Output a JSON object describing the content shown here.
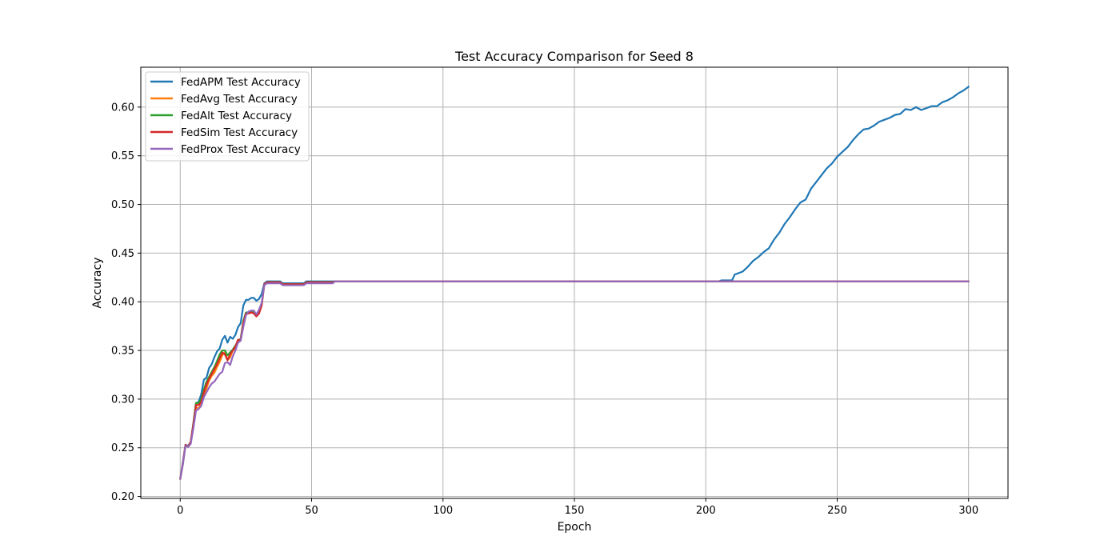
{
  "chart_data": {
    "type": "line",
    "title": "Test Accuracy Comparison for Seed 8",
    "xlabel": "Epoch",
    "ylabel": "Accuracy",
    "xlim": [
      -15,
      315
    ],
    "ylim": [
      0.198,
      0.641
    ],
    "xticks": [
      0,
      50,
      100,
      150,
      200,
      250,
      300
    ],
    "xtick_labels": [
      "0",
      "50",
      "100",
      "150",
      "200",
      "250",
      "300"
    ],
    "yticks": [
      0.2,
      0.25,
      0.3,
      0.35,
      0.4,
      0.45,
      0.5,
      0.55,
      0.6
    ],
    "ytick_labels": [
      "0.20",
      "0.25",
      "0.30",
      "0.35",
      "0.40",
      "0.45",
      "0.50",
      "0.55",
      "0.60"
    ],
    "grid": true,
    "legend_position": "upper-left",
    "series": [
      {
        "name": "FedAPM Test Accuracy",
        "color": "#1f77b4",
        "points": [
          [
            0,
            0.218
          ],
          [
            1,
            0.235
          ],
          [
            2,
            0.253
          ],
          [
            3,
            0.252
          ],
          [
            4,
            0.256
          ],
          [
            5,
            0.275
          ],
          [
            6,
            0.296
          ],
          [
            7,
            0.297
          ],
          [
            8,
            0.305
          ],
          [
            9,
            0.32
          ],
          [
            10,
            0.322
          ],
          [
            11,
            0.332
          ],
          [
            12,
            0.336
          ],
          [
            13,
            0.343
          ],
          [
            14,
            0.349
          ],
          [
            15,
            0.352
          ],
          [
            16,
            0.361
          ],
          [
            17,
            0.365
          ],
          [
            18,
            0.358
          ],
          [
            19,
            0.364
          ],
          [
            20,
            0.362
          ],
          [
            21,
            0.366
          ],
          [
            22,
            0.374
          ],
          [
            23,
            0.378
          ],
          [
            24,
            0.396
          ],
          [
            25,
            0.402
          ],
          [
            26,
            0.402
          ],
          [
            27,
            0.404
          ],
          [
            28,
            0.404
          ],
          [
            29,
            0.401
          ],
          [
            30,
            0.403
          ],
          [
            31,
            0.408
          ],
          [
            32,
            0.419
          ],
          [
            33,
            0.421
          ],
          [
            35,
            0.421
          ],
          [
            38,
            0.421
          ],
          [
            39,
            0.419
          ],
          [
            47,
            0.419
          ],
          [
            48,
            0.421
          ],
          [
            205,
            0.421
          ],
          [
            206,
            0.422
          ],
          [
            210,
            0.422
          ],
          [
            211,
            0.428
          ],
          [
            214,
            0.431
          ],
          [
            216,
            0.436
          ],
          [
            218,
            0.442
          ],
          [
            220,
            0.446
          ],
          [
            222,
            0.451
          ],
          [
            224,
            0.455
          ],
          [
            226,
            0.464
          ],
          [
            228,
            0.471
          ],
          [
            230,
            0.48
          ],
          [
            232,
            0.487
          ],
          [
            234,
            0.495
          ],
          [
            236,
            0.502
          ],
          [
            238,
            0.505
          ],
          [
            240,
            0.516
          ],
          [
            242,
            0.523
          ],
          [
            244,
            0.53
          ],
          [
            246,
            0.537
          ],
          [
            248,
            0.542
          ],
          [
            250,
            0.549
          ],
          [
            252,
            0.554
          ],
          [
            254,
            0.559
          ],
          [
            256,
            0.566
          ],
          [
            258,
            0.572
          ],
          [
            260,
            0.577
          ],
          [
            262,
            0.578
          ],
          [
            264,
            0.581
          ],
          [
            266,
            0.585
          ],
          [
            268,
            0.587
          ],
          [
            270,
            0.589
          ],
          [
            272,
            0.592
          ],
          [
            274,
            0.593
          ],
          [
            276,
            0.598
          ],
          [
            278,
            0.597
          ],
          [
            280,
            0.6
          ],
          [
            282,
            0.597
          ],
          [
            284,
            0.599
          ],
          [
            286,
            0.601
          ],
          [
            288,
            0.601
          ],
          [
            290,
            0.605
          ],
          [
            292,
            0.607
          ],
          [
            294,
            0.61
          ],
          [
            296,
            0.614
          ],
          [
            298,
            0.617
          ],
          [
            300,
            0.621
          ]
        ]
      },
      {
        "name": "FedAvg Test Accuracy",
        "color": "#ff7f0e",
        "points": [
          [
            0,
            0.218
          ],
          [
            1,
            0.233
          ],
          [
            2,
            0.253
          ],
          [
            3,
            0.251
          ],
          [
            4,
            0.256
          ],
          [
            5,
            0.273
          ],
          [
            6,
            0.292
          ],
          [
            7,
            0.29
          ],
          [
            8,
            0.296
          ],
          [
            9,
            0.305
          ],
          [
            10,
            0.311
          ],
          [
            11,
            0.319
          ],
          [
            12,
            0.324
          ],
          [
            13,
            0.327
          ],
          [
            14,
            0.333
          ],
          [
            15,
            0.338
          ],
          [
            16,
            0.345
          ],
          [
            17,
            0.348
          ],
          [
            18,
            0.34
          ],
          [
            19,
            0.343
          ],
          [
            20,
            0.35
          ],
          [
            21,
            0.352
          ],
          [
            22,
            0.361
          ],
          [
            23,
            0.361
          ],
          [
            24,
            0.378
          ],
          [
            25,
            0.387
          ],
          [
            26,
            0.388
          ],
          [
            27,
            0.389
          ],
          [
            28,
            0.389
          ],
          [
            29,
            0.386
          ],
          [
            30,
            0.39
          ],
          [
            31,
            0.397
          ],
          [
            32,
            0.418
          ],
          [
            33,
            0.42
          ],
          [
            38,
            0.42
          ],
          [
            39,
            0.418
          ],
          [
            47,
            0.418
          ],
          [
            48,
            0.42
          ],
          [
            58,
            0.42
          ],
          [
            59,
            0.421
          ],
          [
            300,
            0.421
          ]
        ]
      },
      {
        "name": "FedAlt Test Accuracy",
        "color": "#2ca02c",
        "points": [
          [
            0,
            0.218
          ],
          [
            1,
            0.233
          ],
          [
            2,
            0.253
          ],
          [
            3,
            0.251
          ],
          [
            4,
            0.256
          ],
          [
            5,
            0.275
          ],
          [
            6,
            0.296
          ],
          [
            7,
            0.296
          ],
          [
            8,
            0.3
          ],
          [
            9,
            0.31
          ],
          [
            10,
            0.318
          ],
          [
            11,
            0.323
          ],
          [
            12,
            0.328
          ],
          [
            13,
            0.333
          ],
          [
            14,
            0.339
          ],
          [
            15,
            0.346
          ],
          [
            16,
            0.35
          ],
          [
            17,
            0.35
          ],
          [
            18,
            0.345
          ],
          [
            19,
            0.348
          ],
          [
            20,
            0.351
          ],
          [
            21,
            0.355
          ],
          [
            22,
            0.36
          ],
          [
            23,
            0.362
          ],
          [
            24,
            0.38
          ],
          [
            25,
            0.389
          ],
          [
            26,
            0.389
          ],
          [
            27,
            0.39
          ],
          [
            28,
            0.39
          ],
          [
            29,
            0.387
          ],
          [
            30,
            0.39
          ],
          [
            31,
            0.397
          ],
          [
            32,
            0.418
          ],
          [
            33,
            0.42
          ],
          [
            38,
            0.42
          ],
          [
            39,
            0.418
          ],
          [
            47,
            0.418
          ],
          [
            48,
            0.42
          ],
          [
            58,
            0.42
          ],
          [
            59,
            0.421
          ],
          [
            300,
            0.421
          ]
        ]
      },
      {
        "name": "FedSim Test Accuracy",
        "color": "#d62728",
        "points": [
          [
            0,
            0.218
          ],
          [
            1,
            0.234
          ],
          [
            2,
            0.253
          ],
          [
            3,
            0.251
          ],
          [
            4,
            0.256
          ],
          [
            5,
            0.274
          ],
          [
            6,
            0.294
          ],
          [
            7,
            0.294
          ],
          [
            8,
            0.297
          ],
          [
            9,
            0.307
          ],
          [
            10,
            0.315
          ],
          [
            11,
            0.321
          ],
          [
            12,
            0.326
          ],
          [
            13,
            0.331
          ],
          [
            14,
            0.336
          ],
          [
            15,
            0.342
          ],
          [
            16,
            0.348
          ],
          [
            17,
            0.346
          ],
          [
            18,
            0.34
          ],
          [
            19,
            0.346
          ],
          [
            20,
            0.35
          ],
          [
            21,
            0.354
          ],
          [
            22,
            0.361
          ],
          [
            23,
            0.361
          ],
          [
            24,
            0.378
          ],
          [
            25,
            0.388
          ],
          [
            26,
            0.388
          ],
          [
            27,
            0.389
          ],
          [
            28,
            0.388
          ],
          [
            29,
            0.385
          ],
          [
            30,
            0.388
          ],
          [
            31,
            0.396
          ],
          [
            32,
            0.418
          ],
          [
            33,
            0.42
          ],
          [
            38,
            0.42
          ],
          [
            39,
            0.418
          ],
          [
            47,
            0.418
          ],
          [
            48,
            0.42
          ],
          [
            58,
            0.42
          ],
          [
            59,
            0.421
          ],
          [
            300,
            0.421
          ]
        ]
      },
      {
        "name": "FedProx Test Accuracy",
        "color": "#9467bd",
        "points": [
          [
            0,
            0.218
          ],
          [
            1,
            0.233
          ],
          [
            2,
            0.252
          ],
          [
            3,
            0.251
          ],
          [
            4,
            0.254
          ],
          [
            5,
            0.27
          ],
          [
            6,
            0.288
          ],
          [
            7,
            0.29
          ],
          [
            8,
            0.293
          ],
          [
            9,
            0.302
          ],
          [
            10,
            0.307
          ],
          [
            11,
            0.312
          ],
          [
            12,
            0.316
          ],
          [
            13,
            0.318
          ],
          [
            14,
            0.322
          ],
          [
            15,
            0.326
          ],
          [
            16,
            0.328
          ],
          [
            17,
            0.337
          ],
          [
            18,
            0.338
          ],
          [
            19,
            0.335
          ],
          [
            20,
            0.344
          ],
          [
            21,
            0.35
          ],
          [
            22,
            0.358
          ],
          [
            23,
            0.36
          ],
          [
            24,
            0.374
          ],
          [
            25,
            0.386
          ],
          [
            26,
            0.39
          ],
          [
            27,
            0.391
          ],
          [
            28,
            0.391
          ],
          [
            29,
            0.387
          ],
          [
            30,
            0.392
          ],
          [
            31,
            0.399
          ],
          [
            32,
            0.417
          ],
          [
            33,
            0.419
          ],
          [
            38,
            0.419
          ],
          [
            39,
            0.417
          ],
          [
            47,
            0.417
          ],
          [
            48,
            0.419
          ],
          [
            58,
            0.419
          ],
          [
            59,
            0.421
          ],
          [
            300,
            0.421
          ]
        ]
      }
    ]
  }
}
